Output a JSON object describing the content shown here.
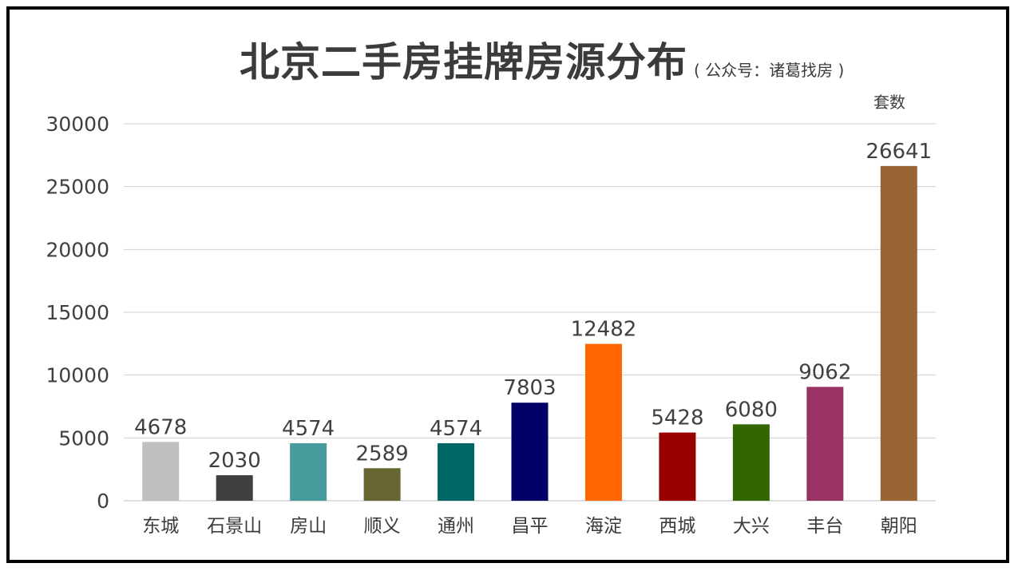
{
  "chart_data": {
    "type": "bar",
    "title": "北京二手房挂牌房源分布",
    "subtitle": "( 公众号：诸葛找房 )",
    "ylabel": "套数",
    "xlabel": "",
    "ylim": [
      0,
      30000
    ],
    "yticks": [
      0,
      5000,
      10000,
      15000,
      20000,
      25000,
      30000
    ],
    "grid": true,
    "legend": "none",
    "categories": [
      "东城",
      "石景山",
      "房山",
      "顺义",
      "通州",
      "昌平",
      "海淀",
      "西城",
      "大兴",
      "丰台",
      "朝阳"
    ],
    "values": [
      4678,
      2030,
      4574,
      2589,
      4574,
      7803,
      12482,
      5428,
      6080,
      9062,
      26641
    ],
    "colors": [
      "#bfbfbf",
      "#404040",
      "#469c9c",
      "#666633",
      "#006666",
      "#000066",
      "#ff6600",
      "#990000",
      "#336600",
      "#993366",
      "#996633"
    ]
  }
}
